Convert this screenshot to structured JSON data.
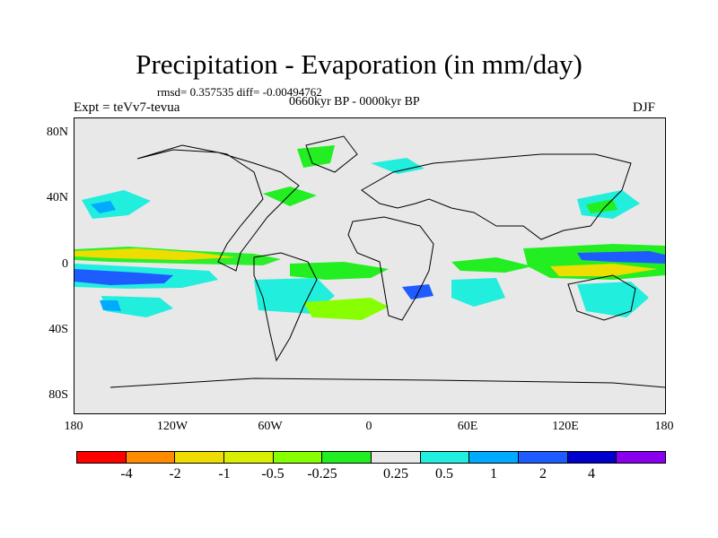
{
  "title": "Precipitation - Evaporation (in mm/day)",
  "stats": "rmsd= 0.357535  diff= -0.00494762",
  "experiment": "Expt = teVv7-tevua",
  "period": "0660kyr BP - 0000kyr BP",
  "season": "DJF",
  "map": {
    "lat_labels": [
      "80N",
      "40N",
      "0",
      "40S",
      "80S"
    ],
    "lon_labels": [
      "180",
      "120W",
      "60W",
      "0",
      "60E",
      "120E",
      "180"
    ]
  },
  "legend": {
    "colors": [
      "#ff0000",
      "#ff8c00",
      "#eedd00",
      "#d9ee00",
      "#88ff00",
      "#22ee22",
      "#e8e8e8",
      "#22eedd",
      "#00aaff",
      "#1f5cff",
      "#0000cc",
      "#8800ee"
    ],
    "labels": [
      "-4",
      "-2",
      "-1",
      "-0.5",
      "-0.25",
      "0.25",
      "0.5",
      "1",
      "2",
      "4"
    ]
  }
}
